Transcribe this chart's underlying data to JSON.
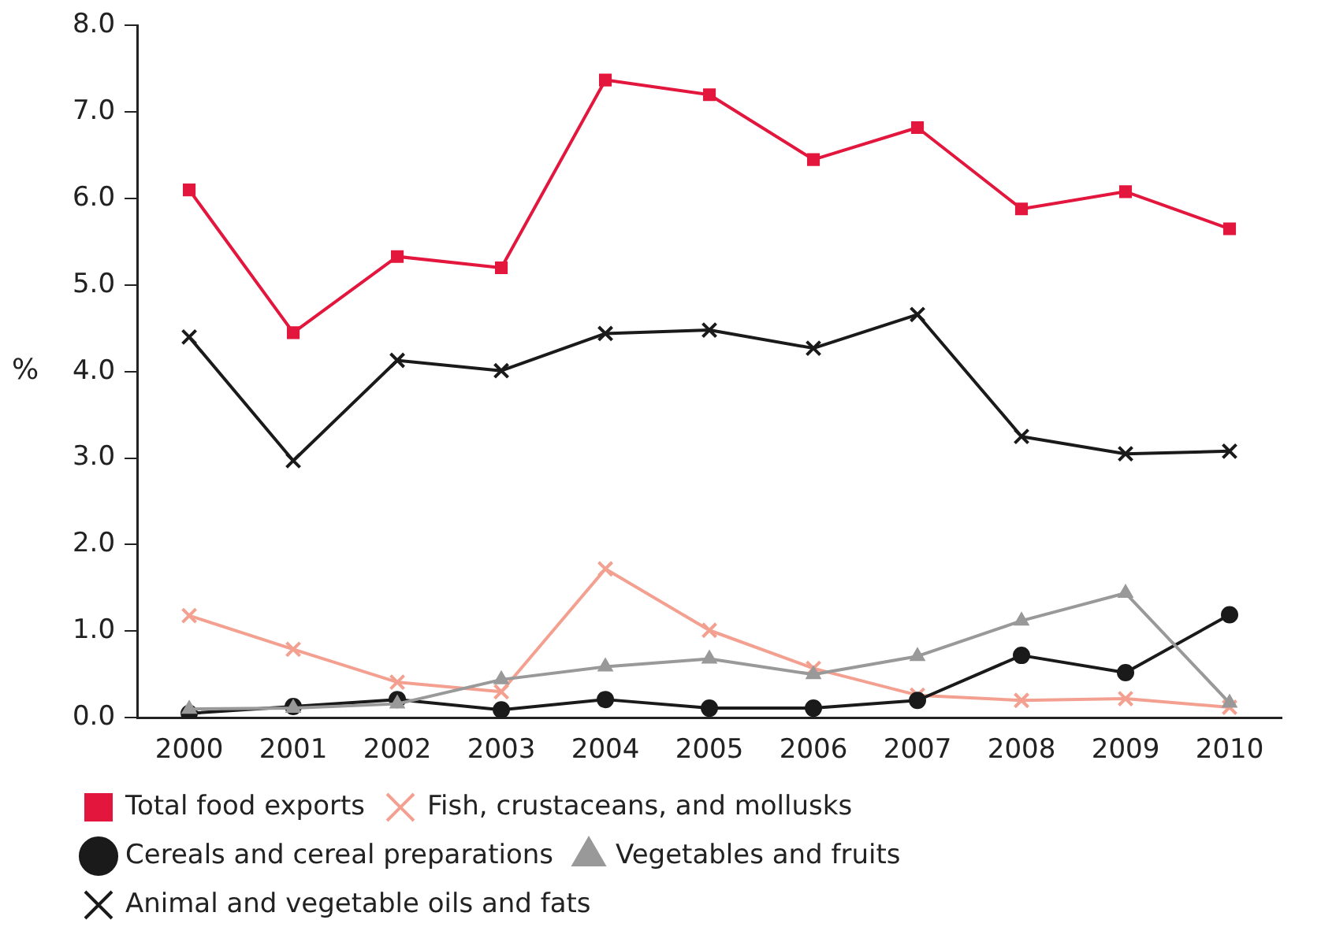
{
  "chart_data": {
    "type": "line",
    "ylabel": "%",
    "categories": [
      "2000",
      "2001",
      "2002",
      "2003",
      "2004",
      "2005",
      "2006",
      "2007",
      "2008",
      "2009",
      "2010"
    ],
    "series": [
      {
        "name": "Total food exports",
        "color": "#e3173d",
        "marker": "square",
        "values": [
          6.1,
          4.45,
          5.33,
          5.2,
          7.37,
          7.2,
          6.45,
          6.82,
          5.88,
          6.08,
          5.65
        ]
      },
      {
        "name": "Fish, crustaceans, and mollusks",
        "color": "#f4a090",
        "marker": "cross",
        "values": [
          1.18,
          0.79,
          0.41,
          0.3,
          1.72,
          1.01,
          0.57,
          0.26,
          0.2,
          0.22,
          0.12
        ]
      },
      {
        "name": "Cereals and cereal preparations",
        "color": "#1a1a1a",
        "marker": "circle",
        "values": [
          0.05,
          0.13,
          0.21,
          0.09,
          0.21,
          0.11,
          0.11,
          0.2,
          0.72,
          0.52,
          1.19
        ]
      },
      {
        "name": "Vegetables and fruits",
        "color": "#999999",
        "marker": "triangle",
        "values": [
          0.1,
          0.11,
          0.16,
          0.44,
          0.59,
          0.68,
          0.5,
          0.71,
          1.12,
          1.44,
          0.17
        ]
      },
      {
        "name": "Animal and vegetable oils and fats",
        "color": "#1a1a1a",
        "marker": "cross",
        "values": [
          4.4,
          2.97,
          4.13,
          4.01,
          4.44,
          4.48,
          4.27,
          4.66,
          3.25,
          3.05,
          3.08
        ]
      }
    ],
    "ylim": [
      0,
      8
    ],
    "yticks": [
      {
        "value": 0,
        "label": "0.0"
      },
      {
        "value": 1,
        "label": "1.0"
      },
      {
        "value": 2,
        "label": "2.0"
      },
      {
        "value": 3,
        "label": "3.0"
      },
      {
        "value": 4,
        "label": "4.0"
      },
      {
        "value": 5,
        "label": "5.0"
      },
      {
        "value": 6,
        "label": "6.0"
      },
      {
        "value": 7,
        "label": "7.0"
      },
      {
        "value": 8,
        "label": "8.0"
      }
    ],
    "grid": false,
    "legend": "bottom",
    "line_style": "solid"
  }
}
